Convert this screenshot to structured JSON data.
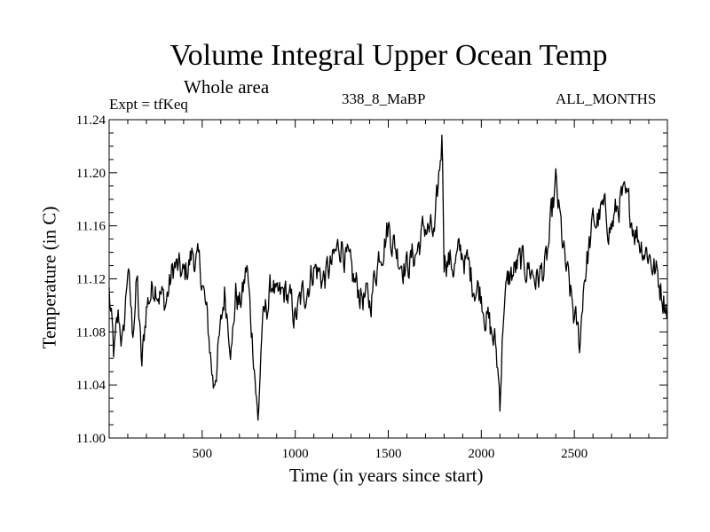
{
  "chart_data": {
    "type": "line",
    "title": "Volume Integral Upper Ocean Temp",
    "subtitle": "Whole area",
    "annotations": {
      "experiment": "Expt = tfKeq",
      "run": "338_8_MaBP",
      "months": "ALL_MONTHS"
    },
    "xlabel": "Time (in years since start)",
    "ylabel": "Temperature (in C)",
    "xlim": [
      0,
      3000
    ],
    "ylim": [
      11.0,
      11.24
    ],
    "xticks": [
      500,
      1000,
      1500,
      2000,
      2500
    ],
    "xtick_labels": [
      "500",
      "1000",
      "1500",
      "2000",
      "2500"
    ],
    "yticks": [
      11.0,
      11.04,
      11.08,
      11.12,
      11.16,
      11.2,
      11.24
    ],
    "ytick_labels": [
      "11.00",
      "11.04",
      "11.08",
      "11.12",
      "11.16",
      "11.20",
      "11.24"
    ],
    "grid": false,
    "line_color": "#000000",
    "series": [
      {
        "x": [
          0,
          25,
          50,
          75,
          100,
          125,
          150,
          175,
          200,
          250,
          300,
          350,
          400,
          450,
          500,
          540,
          560,
          580,
          600,
          620,
          640,
          660,
          680,
          700,
          720,
          740,
          760,
          780,
          800,
          820,
          850,
          880,
          900,
          950,
          1000,
          1050,
          1100,
          1150,
          1200,
          1250,
          1300,
          1350,
          1400,
          1450,
          1500,
          1550,
          1600,
          1650,
          1700,
          1750,
          1790,
          1800,
          1850,
          1900,
          1950,
          2000,
          2050,
          2075,
          2090,
          2100,
          2120,
          2150,
          2200,
          2250,
          2300,
          2350,
          2400,
          2450,
          2500,
          2530,
          2550,
          2600,
          2650,
          2700,
          2750,
          2800,
          2850,
          2900,
          2950,
          3000
        ],
        "y": [
          11.11,
          11.06,
          11.09,
          11.07,
          11.13,
          11.08,
          11.12,
          11.05,
          11.1,
          11.12,
          11.1,
          11.13,
          11.12,
          11.14,
          11.12,
          11.07,
          11.04,
          11.06,
          11.08,
          11.11,
          11.09,
          11.07,
          11.11,
          11.1,
          11.11,
          11.13,
          11.09,
          11.06,
          11.01,
          11.08,
          11.1,
          11.12,
          11.1,
          11.11,
          11.09,
          11.11,
          11.13,
          11.12,
          11.13,
          11.15,
          11.12,
          11.11,
          11.1,
          11.14,
          11.16,
          11.14,
          11.13,
          11.14,
          11.16,
          11.15,
          11.23,
          11.14,
          11.13,
          11.14,
          11.12,
          11.11,
          11.08,
          11.07,
          11.05,
          11.03,
          11.1,
          11.12,
          11.13,
          11.13,
          11.12,
          11.13,
          11.19,
          11.13,
          11.09,
          11.07,
          11.12,
          11.16,
          11.17,
          11.16,
          11.18,
          11.17,
          11.15,
          11.14,
          11.12,
          11.1
        ]
      }
    ]
  }
}
